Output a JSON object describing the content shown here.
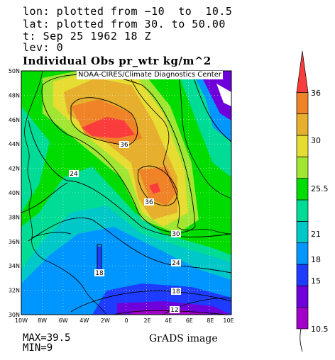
{
  "header": {
    "lon": "lon: plotted from −10  to  10.5",
    "lat": "lat: plotted from 30. to 50.00",
    "time": "t: Sep 25 1962 18 Z",
    "lev": "lev: 0"
  },
  "title": "Individual Obs pr_wtr kg/m^2",
  "credit": "NOAA-CIRES/Climate Diagnostics Center",
  "stats": {
    "max": "MAX=39.5",
    "min": "MIN=9"
  },
  "footer": "GrADS image",
  "chart_data": {
    "type": "heatmap",
    "title": "Individual Obs pr_wtr kg/m^2",
    "units": "kg/m^2",
    "x_range": [
      -10,
      10.5
    ],
    "y_range": [
      30,
      50
    ],
    "x_ticks": [
      "10W",
      "8W",
      "6W",
      "4W",
      "2W",
      "0",
      "2E",
      "4E",
      "6E",
      "8E",
      "10E"
    ],
    "y_ticks": [
      "30N",
      "32N",
      "34N",
      "36N",
      "38N",
      "40N",
      "42N",
      "44N",
      "46N",
      "48N",
      "50N"
    ],
    "colorbar": {
      "labels": [
        "10.5",
        "15",
        "18",
        "21",
        "25.5",
        "30",
        "36"
      ],
      "colors": [
        "#a000c8",
        "#6e00dc",
        "#1e3cff",
        "#0096ff",
        "#00c8c8",
        "#00dc96",
        "#00dc00",
        "#a0e632",
        "#e6dc32",
        "#e6af2d",
        "#f08228",
        "#fa3c3c"
      ]
    },
    "contour_labels": [
      "36",
      "24",
      "36",
      "30",
      "24",
      "18",
      "18",
      "12"
    ],
    "max": 39.5,
    "min": 9,
    "grid": true
  }
}
